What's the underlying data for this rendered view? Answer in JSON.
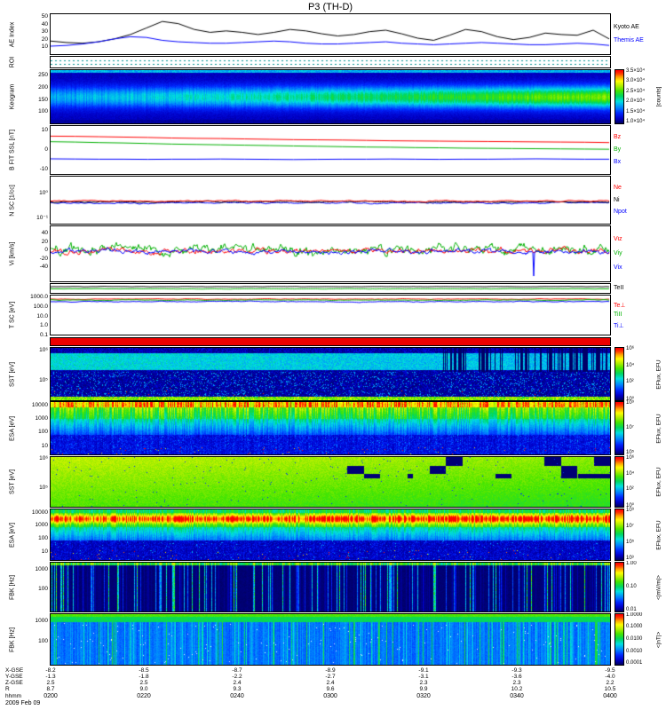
{
  "title": "P3 (TH-D)",
  "chart_data": {
    "type": "multi-panel time series (THEMIS TH-D spacecraft overview plot)",
    "title": "P3 (TH-D)",
    "x_axis": {
      "label": "hhmm",
      "date": "2009 Feb 09",
      "ticks": [
        "0200",
        "0220",
        "0240",
        "0300",
        "0320",
        "0340",
        "0400"
      ]
    },
    "ephemeris": {
      "rows": [
        {
          "label": "X-GSE",
          "values": [
            "-8.2",
            "-8.5",
            "-8.7",
            "-8.9",
            "-9.1",
            "-9.3",
            "-9.5"
          ]
        },
        {
          "label": "Y-GSE",
          "values": [
            "-1.3",
            "-1.8",
            "-2.2",
            "-2.7",
            "-3.1",
            "-3.6",
            "-4.0"
          ]
        },
        {
          "label": "Z-GSE",
          "values": [
            "2.5",
            "2.5",
            "2.4",
            "2.4",
            "2.3",
            "2.3",
            "2.2"
          ]
        },
        {
          "label": "R",
          "values": [
            "8.7",
            "9.0",
            "9.3",
            "9.6",
            "9.9",
            "10.2",
            "10.5"
          ]
        }
      ]
    },
    "panels": [
      {
        "id": "ae",
        "kind": "line",
        "top": 15,
        "h": 47,
        "ylabel": "AE Index",
        "yrange": [
          0,
          55
        ],
        "yticks": [
          {
            "t": "50",
            "v": 50
          },
          {
            "t": "40",
            "v": 40
          },
          {
            "t": "30",
            "v": 30
          },
          {
            "t": "20",
            "v": 20
          },
          {
            "t": "10",
            "v": 10
          }
        ],
        "series": [
          {
            "name": "Kyoto AE",
            "color": "#000000",
            "values": [
              18,
              16,
              15,
              17,
              21,
              27,
              36,
              45,
              42,
              34,
              30,
              32,
              30,
              27,
              30,
              34,
              32,
              28,
              25,
              27,
              31,
              33,
              28,
              22,
              19,
              26,
              34,
              31,
              24,
              20,
              23,
              29,
              27,
              26,
              33,
              21
            ]
          },
          {
            "name": "Themis AE",
            "color": "#0000ff",
            "values": [
              11,
              12,
              14,
              17,
              21,
              24,
              23,
              19,
              17,
              16,
              15,
              15,
              16,
              17,
              18,
              17,
              15,
              14,
              14,
              15,
              16,
              17,
              15,
              14,
              13,
              14,
              15,
              16,
              15,
              14,
              13,
              13,
              14,
              15,
              14,
              12
            ]
          }
        ],
        "legend": [
          {
            "t": "Kyoto AE",
            "c": "#000000"
          },
          {
            "t": "Themis AE",
            "c": "#0000ff"
          }
        ]
      },
      {
        "id": "roi",
        "kind": "roi",
        "top": 63,
        "h": 14,
        "ylabel": "ROI",
        "color": "#009090"
      },
      {
        "id": "keogram",
        "kind": "spectrogram",
        "style": "keogram",
        "top": 78,
        "h": 62,
        "ylabel": "Keogram",
        "yticks": [
          {
            "t": "250",
            "p": 0.12
          },
          {
            "t": "200",
            "p": 0.34
          },
          {
            "t": "150",
            "p": 0.56
          },
          {
            "t": "100",
            "p": 0.78
          }
        ],
        "colorbar": {
          "label": "[counts]",
          "ticks": [
            {
              "t": "3.5×10⁴"
            },
            {
              "t": "3.0×10⁴"
            },
            {
              "t": "2.5×10⁴"
            },
            {
              "t": "2.0×10⁴"
            },
            {
              "t": "1.5×10⁴"
            },
            {
              "t": "1.0×10⁴"
            }
          ]
        }
      },
      {
        "id": "bfit",
        "kind": "line",
        "top": 141,
        "h": 56,
        "ylabel": "B FIT SSL [nT]",
        "yrange": [
          -13,
          13
        ],
        "yticks": [
          {
            "t": "10",
            "v": 10
          },
          {
            "t": "0",
            "v": 0
          },
          {
            "t": "-10",
            "v": -10
          }
        ],
        "series": [
          {
            "name": "Bz",
            "color": "#ff0000",
            "values": [
              7.5,
              7.4,
              7.2,
              7.0,
              6.8,
              6.5,
              6.3,
              6.2,
              6.0,
              5.8,
              5.6,
              5.5,
              5.4,
              5.2,
              5.0,
              4.9,
              4.8,
              4.7,
              4.6,
              4.5,
              4.4,
              4.3,
              4.2,
              4.0
            ]
          },
          {
            "name": "By",
            "color": "#00b000",
            "values": [
              4.5,
              4.3,
              4.0,
              3.8,
              3.5,
              3.2,
              3.0,
              2.8,
              2.6,
              2.4,
              2.2,
              2.0,
              1.8,
              1.6,
              1.5,
              1.3,
              1.2,
              1.0,
              0.9,
              0.8,
              0.7,
              0.6,
              0.5,
              0.4
            ]
          },
          {
            "name": "Bx",
            "color": "#0000ff",
            "values": [
              -4.8,
              -4.9,
              -5.0,
              -5.0,
              -5.1,
              -5.0,
              -5.0,
              -4.9,
              -5.0,
              -5.1,
              -5.2,
              -5.1,
              -5.0,
              -5.0,
              -4.9,
              -5.0,
              -5.1,
              -5.0,
              -5.0,
              -4.9,
              -4.8,
              -4.9,
              -5.0,
              -5.0
            ]
          }
        ],
        "legend": [
          {
            "t": "Bz",
            "c": "#ff0000"
          },
          {
            "t": "By",
            "c": "#00b000"
          },
          {
            "t": "Bx",
            "c": "#0000ff"
          }
        ]
      },
      {
        "id": "density",
        "kind": "line",
        "top": 198,
        "h": 55,
        "ylabel": "N SC [1/cc]",
        "yscale": "log",
        "yrange": [
          0.05,
          5
        ],
        "yticks": [
          {
            "t": "10⁰",
            "v": 1
          },
          {
            "t": "10⁻¹",
            "v": 0.1
          }
        ],
        "series": [
          {
            "name": "Npot",
            "color": "#0000ff",
            "gen": {
              "mean": 0.38,
              "sd": 0.02,
              "n": 315
            }
          },
          {
            "name": "Ni",
            "color": "#000000",
            "gen": {
              "mean": 0.42,
              "sd": 0.02,
              "n": 315
            }
          },
          {
            "name": "Ne",
            "color": "#ff0000",
            "gen": {
              "mean": 0.46,
              "sd": 0.025,
              "n": 315
            }
          }
        ],
        "legend": [
          {
            "t": "Ne",
            "c": "#ff0000"
          },
          {
            "t": "Ni",
            "c": "#000000"
          },
          {
            "t": "Npot",
            "c": "#0000ff"
          }
        ]
      },
      {
        "id": "velocity",
        "kind": "line",
        "top": 254,
        "h": 64,
        "ylabel": "Vi [km/s]",
        "yrange": [
          -75,
          60
        ],
        "yticks": [
          {
            "t": "40",
            "v": 40
          },
          {
            "t": "20",
            "v": 20
          },
          {
            "t": "0",
            "v": 0
          },
          {
            "t": "-20",
            "v": -20
          },
          {
            "t": "-40",
            "v": -40
          }
        ],
        "series": [
          {
            "name": "Viy",
            "color": "#00b000",
            "gen": {
              "mean": 4,
              "sd": 9,
              "n": 630
            }
          },
          {
            "name": "Viz",
            "color": "#ff0000",
            "gen": {
              "mean": 0,
              "sd": 5,
              "n": 630
            }
          },
          {
            "name": "Vix",
            "color": "#0000ff",
            "gen": {
              "mean": -2,
              "sd": 4,
              "n": 630,
              "spikes": [
                {
                  "x": 0.865,
                  "v": -62
                }
              ]
            }
          }
        ],
        "legend": [
          {
            "t": "Viz",
            "c": "#ff0000"
          },
          {
            "t": "Viy",
            "c": "#00b000"
          },
          {
            "t": "Vix",
            "c": "#0000ff"
          }
        ]
      },
      {
        "id": "teii",
        "kind": "line",
        "top": 319,
        "h": 12,
        "yrange": [
          0,
          1
        ],
        "series": [
          {
            "color": "#00b000",
            "gen": {
              "mean": 0.45,
              "sd": 0.015,
              "n": 315
            }
          },
          {
            "name": "TeII",
            "color": "#000000",
            "gen": {
              "mean": 0.7,
              "sd": 0.015,
              "n": 315
            }
          }
        ],
        "legend": [
          {
            "t": "TeII",
            "c": "#000000"
          }
        ]
      },
      {
        "id": "temp",
        "kind": "line",
        "top": 332,
        "h": 46,
        "ylabel": "T SC [eV]",
        "yscale": "log",
        "yrange": [
          0.1,
          2000
        ],
        "yticks": [
          {
            "t": "1000.0",
            "v": 1000
          },
          {
            "t": "100.0",
            "v": 100
          },
          {
            "t": "10.0",
            "v": 10
          },
          {
            "t": "1.0",
            "v": 1
          },
          {
            "t": "0.1",
            "v": 0.1
          }
        ],
        "series": [
          {
            "name": "Te⊥",
            "color": "#ff0000",
            "gen": {
              "mean": 820,
              "sd": 50,
              "n": 315
            }
          },
          {
            "name": "TiII",
            "color": "#00b000",
            "gen": {
              "mean": 640,
              "sd": 45,
              "n": 315
            }
          },
          {
            "name": "Ti⊥",
            "color": "#0000ff",
            "gen": {
              "mean": 430,
              "sd": 35,
              "n": 315
            }
          }
        ],
        "legend": [
          {
            "t": "Te⊥",
            "c": "#ff0000"
          },
          {
            "t": "TiII",
            "c": "#00b000"
          },
          {
            "t": "Ti⊥",
            "c": "#0000ff"
          }
        ]
      },
      {
        "id": "flag",
        "kind": "flag",
        "top": 380,
        "h": 10,
        "color": "#ee0000"
      },
      {
        "id": "sst_e",
        "kind": "spectrogram",
        "style": "sst_e",
        "top": 391,
        "h": 61,
        "ylabel": "SST [eV]",
        "yticks": [
          {
            "t": "10⁶",
            "p": 0.06
          },
          {
            "t": "10⁵",
            "p": 0.62
          }
        ],
        "colorbar": {
          "label": "EFlux, EFU",
          "ticks": [
            {
              "t": "10⁶"
            },
            {
              "t": "10⁴"
            },
            {
              "t": "10²"
            },
            {
              "t": "10⁰"
            }
          ]
        }
      },
      {
        "id": "esa_e",
        "kind": "spectrogram",
        "style": "esa_e",
        "top": 452,
        "h": 61,
        "ylabel": "ESA [eV]",
        "yticks": [
          {
            "t": "10000",
            "p": 0.08
          },
          {
            "t": "1000",
            "p": 0.33
          },
          {
            "t": "100",
            "p": 0.58
          },
          {
            "t": "10",
            "p": 0.83
          }
        ],
        "colorbar": {
          "label": "EFlux, EFU",
          "ticks": [
            {
              "t": "10⁹"
            },
            {
              "t": "10⁷"
            },
            {
              "t": "10⁵"
            }
          ]
        }
      },
      {
        "id": "sst_i",
        "kind": "spectrogram",
        "style": "sst_i",
        "top": 514,
        "h": 58,
        "ylabel": "SST [eV]",
        "yticks": [
          {
            "t": "10⁶",
            "p": 0.06
          },
          {
            "t": "10⁵",
            "p": 0.62
          }
        ],
        "colorbar": {
          "label": "EFlux, EFU",
          "ticks": [
            {
              "t": "10⁶"
            },
            {
              "t": "10⁴"
            },
            {
              "t": "10²"
            },
            {
              "t": "10⁰"
            }
          ]
        }
      },
      {
        "id": "esa_i",
        "kind": "spectrogram",
        "style": "esa_i",
        "top": 573,
        "h": 59,
        "ylabel": "ESA [eV]",
        "yticks": [
          {
            "t": "10000",
            "p": 0.08
          },
          {
            "t": "1000",
            "p": 0.33
          },
          {
            "t": "100",
            "p": 0.58
          },
          {
            "t": "10",
            "p": 0.83
          }
        ],
        "colorbar": {
          "label": "EFlux, EFU",
          "ticks": [
            {
              "t": "10⁹"
            },
            {
              "t": "10⁷"
            },
            {
              "t": "10⁵"
            },
            {
              "t": "10³"
            }
          ]
        }
      },
      {
        "id": "fbk_e",
        "kind": "spectrogram",
        "style": "fbk_e",
        "top": 633,
        "h": 57,
        "ylabel": "FBK [Hz]",
        "yticks": [
          {
            "t": "1000",
            "p": 0.15
          },
          {
            "t": "100",
            "p": 0.55
          }
        ],
        "colorbar": {
          "label": "<|mV/m|>",
          "ticks": [
            {
              "t": "1.00"
            },
            {
              "t": "0.10"
            },
            {
              "t": "0.01"
            }
          ]
        }
      },
      {
        "id": "fbk_b",
        "kind": "spectrogram",
        "style": "fbk_b",
        "top": 691,
        "h": 59,
        "ylabel": "FBK [Hz]",
        "yticks": [
          {
            "t": "1000",
            "p": 0.15
          },
          {
            "t": "100",
            "p": 0.55
          }
        ],
        "colorbar": {
          "label": "<|nT|>",
          "ticks": [
            {
              "t": "1.0000"
            },
            {
              "t": "0.1000"
            },
            {
              "t": "0.0100"
            },
            {
              "t": "0.0010"
            },
            {
              "t": "0.0001"
            }
          ]
        }
      }
    ]
  }
}
